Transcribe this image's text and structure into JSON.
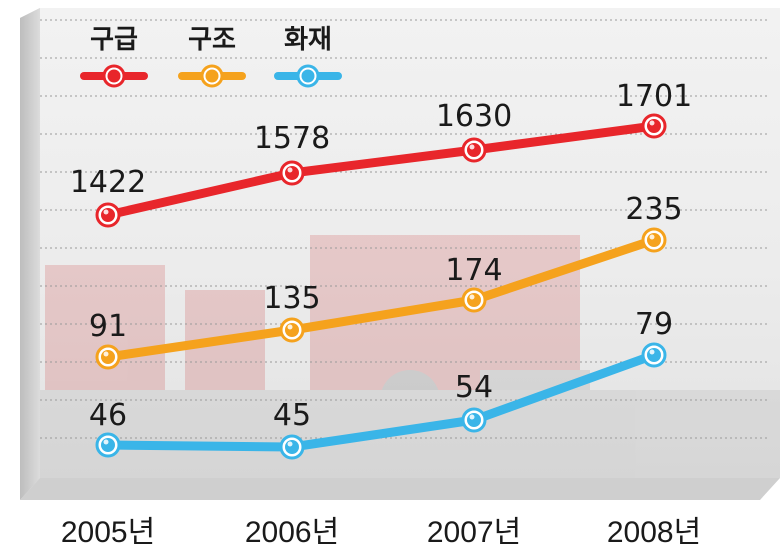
{
  "chart_data": {
    "type": "line",
    "categories": [
      "2005년",
      "2006년",
      "2007년",
      "2008년"
    ],
    "series": [
      {
        "name": "구급",
        "values": [
          1422,
          1578,
          1630,
          1701
        ],
        "color": "#e8262b"
      },
      {
        "name": "구조",
        "values": [
          91,
          135,
          174,
          235
        ],
        "color": "#f5a21d"
      },
      {
        "name": "화재",
        "values": [
          46,
          45,
          54,
          79
        ],
        "color": "#3ab5e8"
      }
    ],
    "title": "",
    "xlabel": "",
    "ylabel": "",
    "legend_position": "top-left",
    "grid": true,
    "y_scale": "non-uniform (broken scale)"
  }
}
